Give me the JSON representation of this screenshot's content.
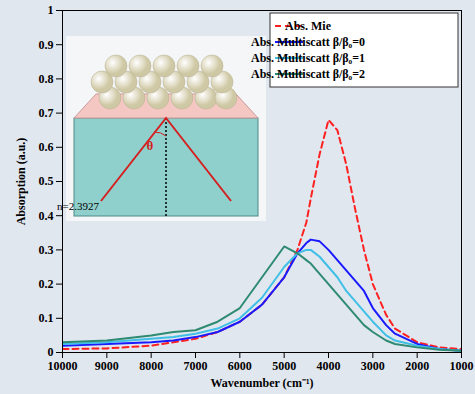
{
  "chart_data": {
    "type": "line",
    "xlabel": "Wavenumber (cm⁻¹)",
    "ylabel": "Absorption (a.u.)",
    "x": [
      10000,
      9000,
      8000,
      7500,
      7000,
      6500,
      6000,
      5500,
      5000,
      4700,
      4500,
      4400,
      4200,
      4000,
      3800,
      3600,
      3400,
      3200,
      3000,
      2700,
      2500,
      2000,
      1500,
      1000
    ],
    "xlim": [
      10000,
      1000
    ],
    "xticks": [
      10000,
      9000,
      8000,
      7000,
      6000,
      5000,
      4000,
      3000,
      2000,
      1000
    ],
    "ylim": [
      0,
      1
    ],
    "yticks": [
      0,
      0.1,
      0.2,
      0.3,
      0.4,
      0.5,
      0.6,
      0.7,
      0.8,
      0.9,
      1
    ],
    "grid": false,
    "legend": "upper right",
    "series": [
      {
        "name": "Abs. Mie",
        "color": "#ff2020",
        "line_style": "dashed",
        "values": [
          0.01,
          0.012,
          0.02,
          0.03,
          0.04,
          0.06,
          0.09,
          0.14,
          0.22,
          0.3,
          0.38,
          0.45,
          0.58,
          0.68,
          0.65,
          0.55,
          0.42,
          0.3,
          0.2,
          0.11,
          0.07,
          0.03,
          0.015,
          0.01
        ]
      },
      {
        "name": "Abs. Multiscatt β/β₀=0",
        "color": "#1a1aff",
        "line_style": "solid",
        "values": [
          0.02,
          0.025,
          0.03,
          0.035,
          0.045,
          0.06,
          0.09,
          0.14,
          0.22,
          0.29,
          0.32,
          0.33,
          0.325,
          0.3,
          0.27,
          0.24,
          0.21,
          0.18,
          0.13,
          0.08,
          0.055,
          0.025,
          0.01,
          0.005
        ]
      },
      {
        "name": "Abs. Multiscatt β/β₀=1",
        "color": "#3fbfe6",
        "line_style": "solid",
        "values": [
          0.025,
          0.03,
          0.04,
          0.045,
          0.055,
          0.07,
          0.1,
          0.16,
          0.25,
          0.29,
          0.3,
          0.3,
          0.28,
          0.25,
          0.22,
          0.18,
          0.15,
          0.12,
          0.09,
          0.05,
          0.035,
          0.02,
          0.01,
          0.005
        ]
      },
      {
        "name": "Abs. Multiscatt β/β₀=2",
        "color": "#2e8b72",
        "line_style": "solid",
        "values": [
          0.03,
          0.035,
          0.05,
          0.06,
          0.065,
          0.09,
          0.13,
          0.22,
          0.31,
          0.29,
          0.27,
          0.26,
          0.23,
          0.2,
          0.17,
          0.14,
          0.11,
          0.08,
          0.06,
          0.035,
          0.025,
          0.015,
          0.008,
          0.005
        ]
      }
    ],
    "inset": {
      "medium_label": "n=2.3927",
      "angle_label": "θ"
    }
  }
}
